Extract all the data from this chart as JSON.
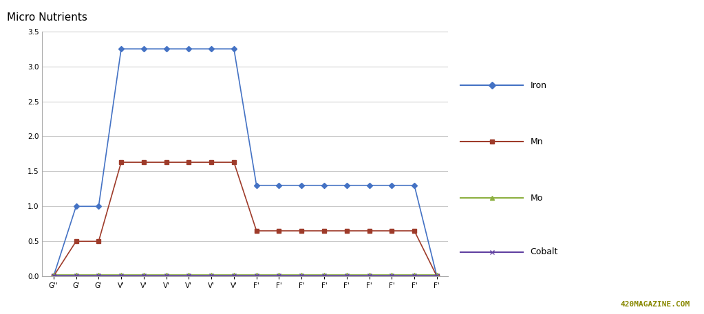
{
  "title": "Micro Nutrients",
  "ylim": [
    0,
    3.5
  ],
  "yticks": [
    0,
    0.5,
    1.0,
    1.5,
    2.0,
    2.5,
    3.0,
    3.5
  ],
  "x_labels": [
    "G''",
    "G'",
    "G'",
    "V'",
    "V'",
    "V'",
    "V'",
    "V'",
    "V'",
    "F'",
    "F'",
    "F'",
    "F'",
    "F'",
    "F'",
    "F'",
    "F'",
    "F'"
  ],
  "iron": [
    0.0,
    1.0,
    1.0,
    3.25,
    3.25,
    3.25,
    3.25,
    3.25,
    3.25,
    1.3,
    1.3,
    1.3,
    1.3,
    1.3,
    1.3,
    1.3,
    1.3,
    0.0
  ],
  "mn": [
    0.0,
    0.5,
    0.5,
    1.63,
    1.63,
    1.63,
    1.63,
    1.63,
    1.63,
    0.65,
    0.65,
    0.65,
    0.65,
    0.65,
    0.65,
    0.65,
    0.65,
    0.0
  ],
  "mo": [
    0.02,
    0.02,
    0.02,
    0.02,
    0.02,
    0.02,
    0.02,
    0.02,
    0.02,
    0.02,
    0.02,
    0.02,
    0.02,
    0.02,
    0.02,
    0.02,
    0.02,
    0.02
  ],
  "cobalt": [
    0.01,
    0.01,
    0.01,
    0.01,
    0.01,
    0.01,
    0.01,
    0.01,
    0.01,
    0.01,
    0.01,
    0.01,
    0.01,
    0.01,
    0.01,
    0.01,
    0.01,
    0.01
  ],
  "iron_color": "#4472C4",
  "mn_color": "#9E3B2A",
  "mo_color": "#8CB040",
  "cobalt_color": "#6040A0",
  "bg_color": "#FFFFFF",
  "grid_color": "#C8C8C8",
  "legend_labels": [
    "Iron",
    "Mn",
    "Mo",
    "Cobalt"
  ],
  "title_fontsize": 11,
  "label_fontsize": 9,
  "tick_fontsize": 7.5
}
